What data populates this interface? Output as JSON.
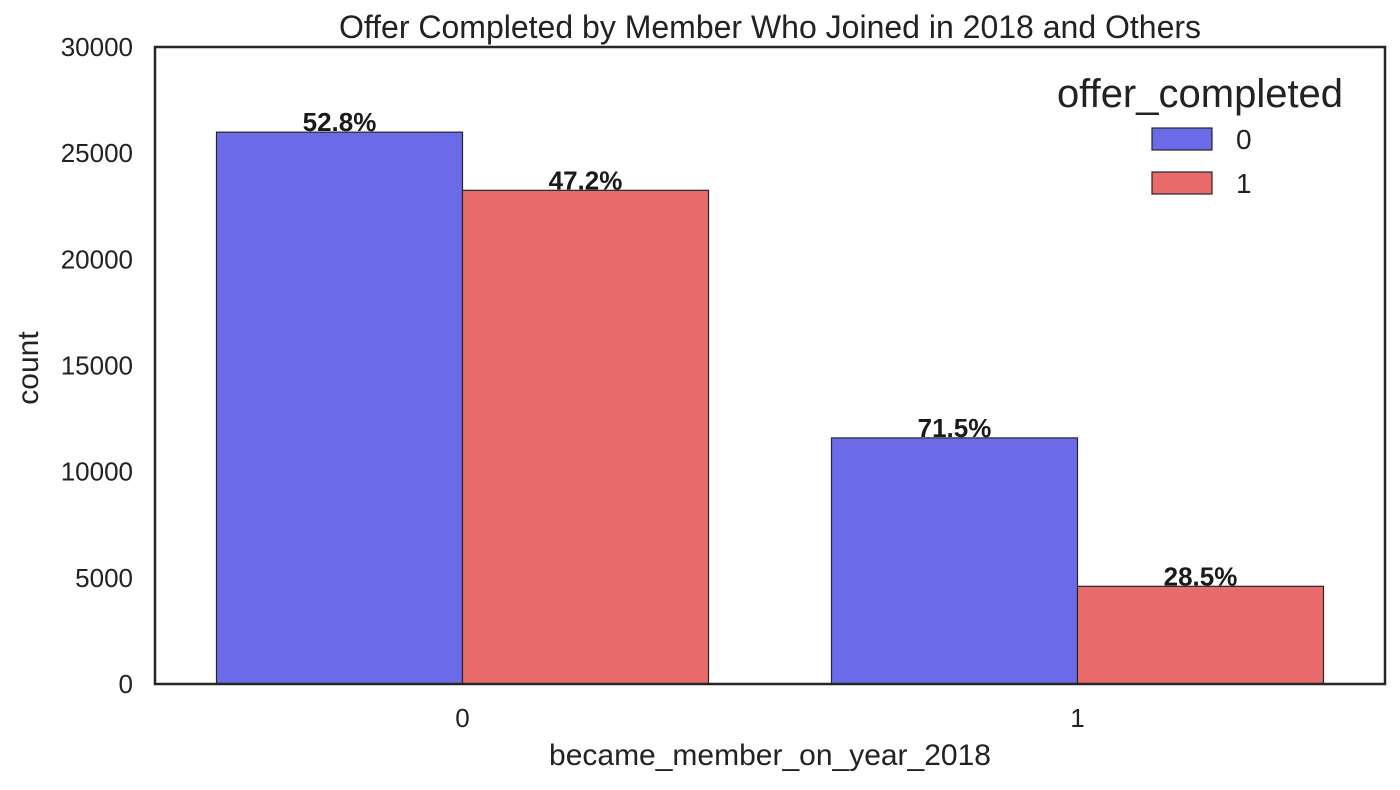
{
  "chart_data": {
    "type": "bar",
    "title": "Offer Completed by Member Who Joined in 2018 and Others",
    "xlabel": "became_member_on_year_2018",
    "ylabel": "count",
    "categories": [
      "0",
      "1"
    ],
    "ylim": [
      0,
      30000
    ],
    "yticks": [
      0,
      5000,
      10000,
      15000,
      20000,
      25000,
      30000
    ],
    "grid": false,
    "legend": {
      "title": "offer_completed",
      "placement": "top-right"
    },
    "series": [
      {
        "name": "0",
        "color": "#6b6be9",
        "values": [
          25990,
          11590
        ],
        "labels": [
          "52.8%",
          "71.5%"
        ]
      },
      {
        "name": "1",
        "color": "#e96b6b",
        "values": [
          23250,
          4600
        ],
        "labels": [
          "47.2%",
          "28.5%"
        ]
      }
    ]
  }
}
